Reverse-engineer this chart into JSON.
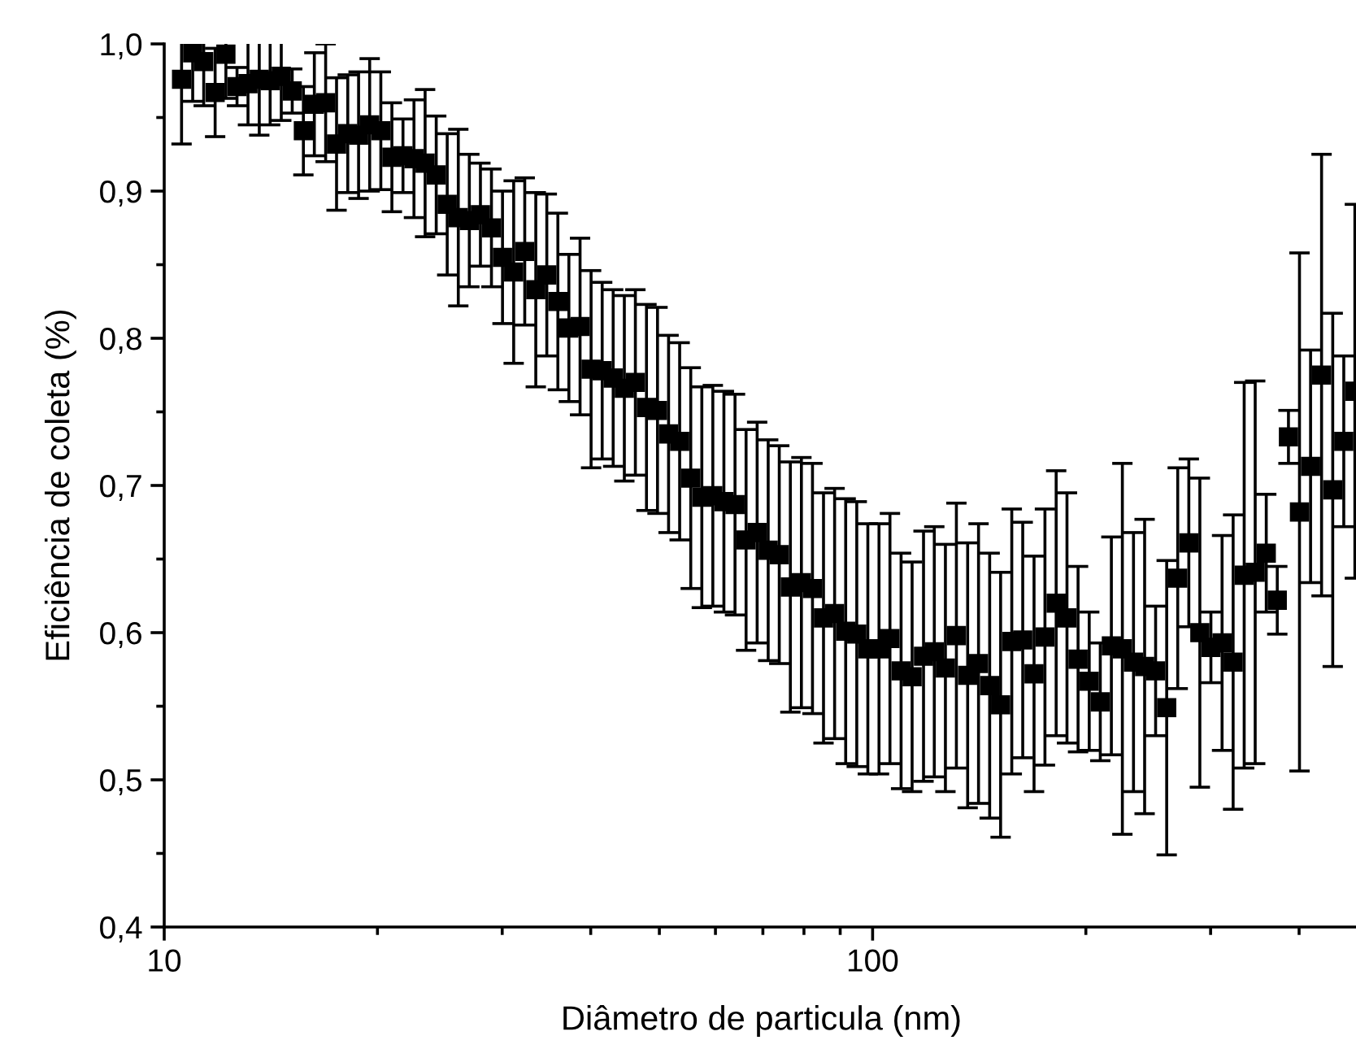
{
  "chart_data": {
    "type": "scatter",
    "xlabel": "Diâmetro de particula (nm)",
    "ylabel": "Eficiência de coleta (%)",
    "log": "x",
    "grid": false,
    "legend": false,
    "marker": "square",
    "xlim": [
      10,
      485
    ],
    "ylim": [
      0.4,
      1.0
    ],
    "xticks": [
      10,
      {
        "value": 20,
        "label": null
      },
      {
        "value": 30,
        "label": null
      },
      {
        "value": 40,
        "label": null
      },
      {
        "value": 50,
        "label": null
      },
      {
        "value": 60,
        "label": null
      },
      {
        "value": 70,
        "label": null
      },
      {
        "value": 80,
        "label": null
      },
      {
        "value": 90,
        "label": null
      },
      100,
      {
        "value": 200,
        "label": null
      },
      {
        "value": 300,
        "label": null
      },
      {
        "value": 400,
        "label": null
      }
    ],
    "yticks": [
      {
        "value": 0.4,
        "label": "0,4"
      },
      {
        "value": 0.45,
        "label": null
      },
      {
        "value": 0.5,
        "label": "0,5"
      },
      {
        "value": 0.55,
        "label": null
      },
      {
        "value": 0.6,
        "label": "0,6"
      },
      {
        "value": 0.65,
        "label": null
      },
      {
        "value": 0.7,
        "label": "0,7"
      },
      {
        "value": 0.75,
        "label": null
      },
      {
        "value": 0.8,
        "label": "0,8"
      },
      {
        "value": 0.85,
        "label": null
      },
      {
        "value": 0.9,
        "label": "0,9"
      },
      {
        "value": 0.95,
        "label": null
      },
      {
        "value": 1.0,
        "label": "1,0"
      }
    ],
    "series": [
      {
        "color": "#000000",
        "x": [
          10.58,
          10.97,
          11.37,
          11.8,
          12.22,
          12.67,
          13.13,
          13.62,
          14.11,
          14.63,
          15.16,
          15.72,
          16.29,
          16.9,
          17.51,
          18.16,
          18.81,
          19.5,
          20.22,
          20.96,
          21.73,
          22.52,
          23.35,
          24.21,
          25.09,
          26.01,
          26.96,
          27.95,
          28.97,
          30.03,
          31.14,
          32.28,
          33.46,
          34.68,
          35.95,
          37.26,
          38.64,
          40.05,
          41.52,
          43.03,
          44.62,
          46.25,
          47.95,
          49.7,
          51.52,
          53.41,
          55.37,
          57.4,
          59.49,
          61.67,
          63.94,
          66.28,
          68.71,
          71.22,
          73.83,
          76.54,
          79.34,
          82.25,
          85.25,
          88.38,
          91.62,
          94.98,
          98.46,
          102.1,
          105.8,
          109.7,
          113.7,
          118.0,
          122.2,
          126.7,
          131.3,
          136.2,
          141.1,
          146.3,
          151.6,
          157.2,
          162.9,
          169.0,
          175.1,
          181.6,
          188.1,
          195.0,
          202.2,
          209.6,
          217.3,
          225.2,
          233.5,
          242.1,
          250.9,
          260.1,
          269.6,
          279.5,
          289.7,
          300.3,
          311.4,
          322.8,
          334.6,
          346.8,
          359.5,
          372.6,
          386.4,
          400.5,
          415.2,
          430.3,
          446.2,
          462.5,
          479.5
        ],
        "values": [
          0.976,
          0.994,
          0.988,
          0.967,
          0.993,
          0.971,
          0.973,
          0.976,
          0.975,
          0.978,
          0.968,
          0.941,
          0.959,
          0.96,
          0.932,
          0.939,
          0.938,
          0.945,
          0.941,
          0.923,
          0.924,
          0.922,
          0.919,
          0.911,
          0.891,
          0.882,
          0.88,
          0.884,
          0.875,
          0.855,
          0.845,
          0.859,
          0.833,
          0.843,
          0.825,
          0.807,
          0.808,
          0.779,
          0.778,
          0.773,
          0.766,
          0.77,
          0.753,
          0.751,
          0.735,
          0.73,
          0.705,
          0.692,
          0.693,
          0.689,
          0.687,
          0.663,
          0.668,
          0.656,
          0.653,
          0.631,
          0.634,
          0.63,
          0.61,
          0.613,
          0.601,
          0.599,
          0.589,
          0.589,
          0.596,
          0.574,
          0.57,
          0.584,
          0.587,
          0.576,
          0.598,
          0.571,
          0.579,
          0.564,
          0.551,
          0.594,
          0.595,
          0.572,
          0.597,
          0.62,
          0.61,
          0.582,
          0.567,
          0.553,
          0.591,
          0.589,
          0.58,
          0.577,
          0.574,
          0.549,
          0.637,
          0.661,
          0.6,
          0.59,
          0.593,
          0.58,
          0.639,
          0.641,
          0.654,
          0.622,
          0.733,
          0.682,
          0.713,
          0.775,
          0.697,
          0.73,
          0.764
        ],
        "errors": [
          0.044,
          0.033,
          0.03,
          0.03,
          0.03,
          0.013,
          0.028,
          0.038,
          0.03,
          0.03,
          0.015,
          0.03,
          0.035,
          0.04,
          0.045,
          0.04,
          0.043,
          0.045,
          0.04,
          0.037,
          0.025,
          0.04,
          0.05,
          0.04,
          0.048,
          0.06,
          0.045,
          0.035,
          0.04,
          0.045,
          0.062,
          0.05,
          0.066,
          0.055,
          0.06,
          0.05,
          0.06,
          0.067,
          0.06,
          0.06,
          0.063,
          0.063,
          0.07,
          0.07,
          0.067,
          0.067,
          0.075,
          0.075,
          0.075,
          0.075,
          0.075,
          0.075,
          0.075,
          0.075,
          0.074,
          0.085,
          0.085,
          0.085,
          0.085,
          0.085,
          0.09,
          0.09,
          0.085,
          0.085,
          0.085,
          0.08,
          0.078,
          0.085,
          0.085,
          0.084,
          0.09,
          0.09,
          0.095,
          0.09,
          0.09,
          0.09,
          0.08,
          0.08,
          0.087,
          0.09,
          0.085,
          0.063,
          0.047,
          0.04,
          0.074,
          0.126,
          0.088,
          0.1,
          0.044,
          0.1,
          0.075,
          0.057,
          0.105,
          0.024,
          0.073,
          0.1,
          0.131,
          0.13,
          0.04,
          0.023,
          0.018,
          0.176,
          0.079,
          0.15,
          0.12,
          0.058,
          0.127
        ]
      }
    ]
  }
}
